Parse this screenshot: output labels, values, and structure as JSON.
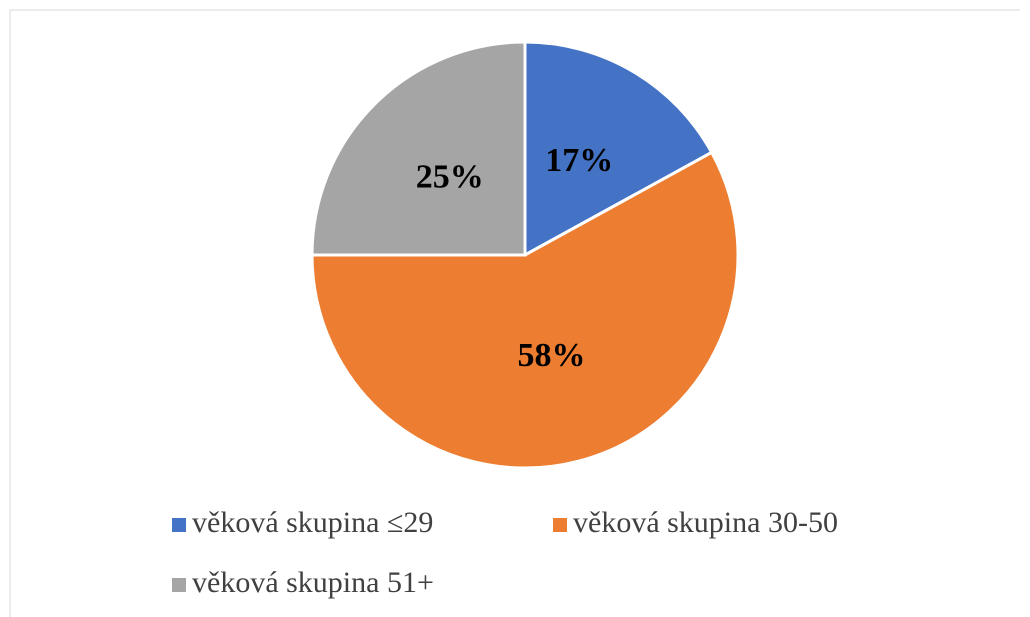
{
  "chart_data": {
    "type": "pie",
    "categories": [
      "věková skupina ≤29",
      "věková skupina 30-50",
      "věková skupina 51+"
    ],
    "values": [
      17,
      58,
      25
    ],
    "value_labels": [
      "17%",
      "58%",
      "25%"
    ],
    "colors": [
      "#4472c4",
      "#ed7d31",
      "#a5a5a5"
    ],
    "legend": "bottom"
  }
}
